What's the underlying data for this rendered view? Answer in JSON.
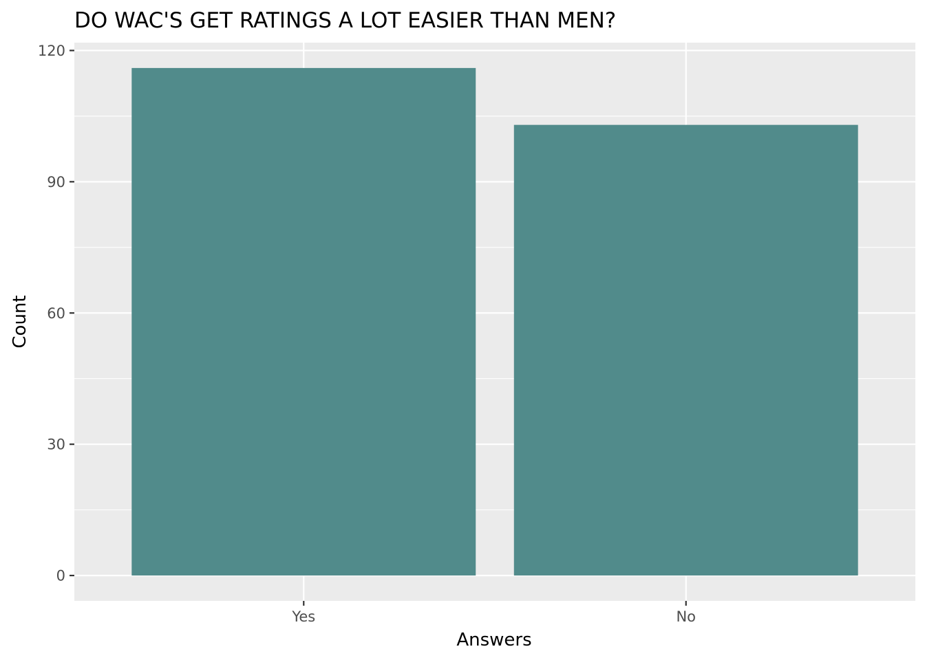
{
  "chart_data": {
    "type": "bar",
    "title": "DO WAC'S GET RATINGS A LOT EASIER THAN MEN?",
    "xlabel": "Answers",
    "ylabel": "Count",
    "categories": [
      "Yes",
      "No"
    ],
    "values": [
      116,
      103
    ],
    "ylim": [
      -5.8,
      121.8
    ],
    "yticks": [
      0,
      30,
      60,
      90,
      120
    ],
    "grid": true,
    "legend": "none",
    "colors": {
      "bar": "#518b8b",
      "panel": "#ebebeb",
      "grid": "#ffffff",
      "tick_text": "#4d4d4d",
      "tick_mark": "#333333"
    }
  }
}
